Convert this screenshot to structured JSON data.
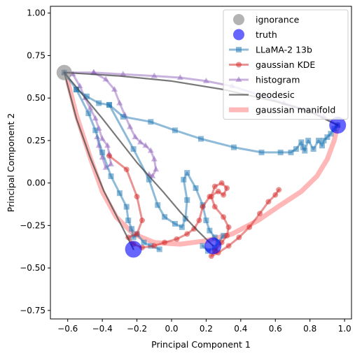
{
  "chart_data": {
    "type": "line",
    "xlabel": "Principal Component 1",
    "ylabel": "Principal Component 2",
    "xlim": [
      -0.7,
      1.04
    ],
    "ylim": [
      -0.8,
      1.04
    ],
    "xticks": [
      -0.6,
      -0.4,
      -0.2,
      0.0,
      0.2,
      0.4,
      0.6,
      0.8,
      1.0
    ],
    "yticks": [
      -0.75,
      -0.5,
      -0.25,
      0.0,
      0.25,
      0.5,
      0.75,
      1.0
    ],
    "xtick_labels": [
      "−0.6",
      "−0.4",
      "−0.2",
      "0.0",
      "0.2",
      "0.4",
      "0.6",
      "0.8",
      "1.0"
    ],
    "ytick_labels": [
      "−0.75",
      "−0.50",
      "−0.25",
      "0.00",
      "0.25",
      "0.50",
      "0.75",
      "1.00"
    ],
    "legend_position": "top-right",
    "grid": false,
    "series": [
      {
        "name": "ignorance",
        "kind": "points",
        "color": "#808080",
        "points": [
          [
            -0.62,
            0.65
          ]
        ]
      },
      {
        "name": "truth",
        "kind": "points",
        "color": "#0000ff",
        "points": [
          [
            0.96,
            0.34
          ],
          [
            -0.22,
            -0.39
          ],
          [
            0.24,
            -0.37
          ]
        ]
      },
      {
        "name": "LLaMA-2 13b",
        "kind": "line-square",
        "color": "#1f77b4",
        "points": [
          [
            -0.62,
            0.65
          ],
          [
            -0.55,
            0.55
          ],
          [
            -0.49,
            0.51
          ],
          [
            -0.42,
            0.47
          ],
          [
            -0.36,
            0.46
          ],
          [
            -0.28,
            0.39
          ],
          [
            -0.12,
            0.36
          ],
          [
            0.02,
            0.31
          ],
          [
            0.17,
            0.26
          ],
          [
            0.36,
            0.21
          ],
          [
            0.52,
            0.18
          ],
          [
            0.63,
            0.18
          ],
          [
            0.69,
            0.18
          ],
          [
            0.72,
            0.2
          ],
          [
            0.75,
            0.24
          ],
          [
            0.76,
            0.21
          ],
          [
            0.77,
            0.19
          ],
          [
            0.79,
            0.25
          ],
          [
            0.82,
            0.2
          ],
          [
            0.85,
            0.25
          ],
          [
            0.87,
            0.22
          ],
          [
            0.88,
            0.25
          ],
          [
            0.9,
            0.27
          ],
          [
            0.92,
            0.29
          ],
          [
            0.94,
            0.32
          ],
          [
            0.96,
            0.34
          ]
        ]
      },
      {
        "name": "LLaMA-2 13b",
        "kind": "line-square",
        "color": "#1f77b4",
        "points": [
          [
            -0.55,
            0.55
          ],
          [
            -0.48,
            0.41
          ],
          [
            -0.44,
            0.31
          ],
          [
            -0.4,
            0.18
          ],
          [
            -0.35,
            0.04
          ],
          [
            -0.3,
            -0.06
          ],
          [
            -0.26,
            -0.14
          ],
          [
            -0.25,
            -0.22
          ],
          [
            -0.23,
            -0.27
          ],
          [
            -0.22,
            -0.32
          ],
          [
            -0.2,
            -0.3
          ],
          [
            -0.16,
            -0.35
          ],
          [
            -0.12,
            -0.37
          ],
          [
            -0.07,
            -0.39
          ]
        ]
      },
      {
        "name": "LLaMA-2 13b",
        "kind": "line-square",
        "color": "#1f77b4",
        "points": [
          [
            -0.36,
            0.46
          ],
          [
            -0.22,
            0.2
          ],
          [
            -0.13,
            0.02
          ],
          [
            -0.08,
            -0.13
          ],
          [
            -0.04,
            -0.2
          ],
          [
            0.02,
            -0.24
          ],
          [
            0.06,
            -0.26
          ],
          [
            0.08,
            -0.21
          ],
          [
            0.09,
            -0.1
          ],
          [
            0.07,
            0.02
          ],
          [
            0.09,
            0.06
          ],
          [
            0.14,
            -0.03
          ],
          [
            0.18,
            -0.13
          ],
          [
            0.2,
            -0.22
          ],
          [
            0.22,
            -0.28
          ],
          [
            0.25,
            -0.32
          ],
          [
            0.27,
            -0.35
          ],
          [
            0.3,
            -0.31
          ],
          [
            0.25,
            -0.38
          ],
          [
            0.21,
            -0.4
          ],
          [
            0.18,
            -0.37
          ]
        ]
      },
      {
        "name": "gaussian KDE",
        "kind": "line-circle",
        "color": "#d62728",
        "points": [
          [
            -0.36,
            0.16
          ],
          [
            -0.26,
            0.08
          ],
          [
            -0.2,
            -0.08
          ],
          [
            -0.17,
            -0.22
          ],
          [
            -0.2,
            -0.3
          ],
          [
            -0.25,
            -0.32
          ],
          [
            -0.22,
            -0.36
          ],
          [
            -0.17,
            -0.38
          ],
          [
            -0.1,
            -0.37
          ],
          [
            -0.04,
            -0.35
          ],
          [
            0.03,
            -0.33
          ],
          [
            0.09,
            -0.3
          ],
          [
            0.13,
            -0.27
          ],
          [
            0.16,
            -0.22
          ],
          [
            0.18,
            -0.14
          ],
          [
            0.22,
            -0.08
          ],
          [
            0.27,
            -0.05
          ],
          [
            0.3,
            -0.07
          ],
          [
            0.32,
            -0.03
          ],
          [
            0.29,
            0.0
          ],
          [
            0.25,
            -0.02
          ],
          [
            0.23,
            -0.08
          ],
          [
            0.25,
            -0.14
          ],
          [
            0.3,
            -0.2
          ],
          [
            0.33,
            -0.26
          ],
          [
            0.32,
            -0.31
          ],
          [
            0.29,
            -0.35
          ],
          [
            0.25,
            -0.4
          ],
          [
            0.23,
            -0.43
          ],
          [
            0.27,
            -0.41
          ],
          [
            0.33,
            -0.37
          ],
          [
            0.39,
            -0.32
          ],
          [
            0.45,
            -0.26
          ],
          [
            0.51,
            -0.18
          ],
          [
            0.56,
            -0.11
          ],
          [
            0.6,
            -0.07
          ],
          [
            0.62,
            -0.04
          ]
        ]
      },
      {
        "name": "histogram",
        "kind": "line-triangle",
        "color": "#9467bd",
        "points": [
          [
            -0.62,
            0.65
          ],
          [
            -0.45,
            0.65
          ],
          [
            -0.28,
            0.64
          ],
          [
            -0.1,
            0.63
          ],
          [
            0.05,
            0.62
          ],
          [
            0.2,
            0.6
          ],
          [
            0.35,
            0.57
          ],
          [
            0.5,
            0.52
          ],
          [
            0.65,
            0.47
          ],
          [
            0.78,
            0.43
          ],
          [
            0.88,
            0.39
          ],
          [
            0.96,
            0.34
          ]
        ]
      },
      {
        "name": "histogram",
        "kind": "line-triangle",
        "color": "#9467bd",
        "points": [
          [
            -0.57,
            0.64
          ],
          [
            -0.53,
            0.57
          ],
          [
            -0.5,
            0.5
          ],
          [
            -0.47,
            0.44
          ],
          [
            -0.44,
            0.38
          ],
          [
            -0.42,
            0.32
          ],
          [
            -0.4,
            0.26
          ],
          [
            -0.37,
            0.22
          ],
          [
            -0.36,
            0.17
          ],
          [
            -0.35,
            0.11
          ],
          [
            -0.38,
            0.09
          ],
          [
            -0.4,
            0.15
          ],
          [
            -0.42,
            0.22
          ],
          [
            -0.43,
            0.27
          ]
        ]
      },
      {
        "name": "histogram",
        "kind": "line-triangle",
        "color": "#9467bd",
        "points": [
          [
            -0.45,
            0.65
          ],
          [
            -0.38,
            0.61
          ],
          [
            -0.33,
            0.55
          ],
          [
            -0.3,
            0.47
          ],
          [
            -0.27,
            0.4
          ],
          [
            -0.24,
            0.33
          ],
          [
            -0.21,
            0.27
          ],
          [
            -0.18,
            0.24
          ],
          [
            -0.15,
            0.22
          ],
          [
            -0.12,
            0.19
          ],
          [
            -0.1,
            0.14
          ],
          [
            -0.09,
            0.08
          ],
          [
            -0.11,
            0.04
          ],
          [
            -0.13,
            0.05
          ]
        ]
      },
      {
        "name": "geodesic",
        "kind": "line",
        "color": "#404040",
        "points": [
          [
            -0.62,
            0.65
          ],
          [
            -0.3,
            0.63
          ],
          [
            0.0,
            0.6
          ],
          [
            0.3,
            0.55
          ],
          [
            0.6,
            0.48
          ],
          [
            0.8,
            0.42
          ],
          [
            0.96,
            0.34
          ]
        ]
      },
      {
        "name": "geodesic",
        "kind": "line",
        "color": "#404040",
        "points": [
          [
            -0.62,
            0.65
          ],
          [
            -0.55,
            0.38
          ],
          [
            -0.47,
            0.15
          ],
          [
            -0.39,
            -0.05
          ],
          [
            -0.3,
            -0.23
          ],
          [
            -0.22,
            -0.39
          ]
        ]
      },
      {
        "name": "geodesic",
        "kind": "line",
        "color": "#404040",
        "points": [
          [
            -0.62,
            0.65
          ],
          [
            -0.4,
            0.38
          ],
          [
            -0.2,
            0.12
          ],
          [
            -0.05,
            -0.05
          ],
          [
            0.05,
            -0.17
          ],
          [
            0.15,
            -0.28
          ],
          [
            0.24,
            -0.37
          ]
        ]
      },
      {
        "name": "gaussian manifold",
        "kind": "line-thick",
        "color": "#ff9999",
        "points": [
          [
            -0.6,
            0.6
          ],
          [
            -0.55,
            0.4
          ],
          [
            -0.47,
            0.15
          ],
          [
            -0.4,
            -0.05
          ],
          [
            -0.32,
            -0.2
          ],
          [
            -0.22,
            -0.3
          ],
          [
            -0.1,
            -0.35
          ],
          [
            0.05,
            -0.36
          ],
          [
            0.2,
            -0.34
          ],
          [
            0.35,
            -0.3
          ],
          [
            0.5,
            -0.22
          ],
          [
            0.63,
            -0.13
          ],
          [
            0.75,
            -0.05
          ],
          [
            0.84,
            0.04
          ],
          [
            0.9,
            0.14
          ],
          [
            0.94,
            0.25
          ],
          [
            0.96,
            0.34
          ]
        ]
      }
    ],
    "legend": [
      {
        "label": "ignorance",
        "symbol": "circle",
        "color": "#808080"
      },
      {
        "label": "truth",
        "symbol": "circle",
        "color": "#0000ff"
      },
      {
        "label": "LLaMA-2 13b",
        "symbol": "line-square",
        "color": "#1f77b4"
      },
      {
        "label": "gaussian KDE",
        "symbol": "line-circle",
        "color": "#d62728"
      },
      {
        "label": "histogram",
        "symbol": "line-triangle",
        "color": "#9467bd"
      },
      {
        "label": "geodesic",
        "symbol": "line",
        "color": "#404040"
      },
      {
        "label": "gaussian manifold",
        "symbol": "line-thick",
        "color": "#ff9999"
      }
    ]
  }
}
